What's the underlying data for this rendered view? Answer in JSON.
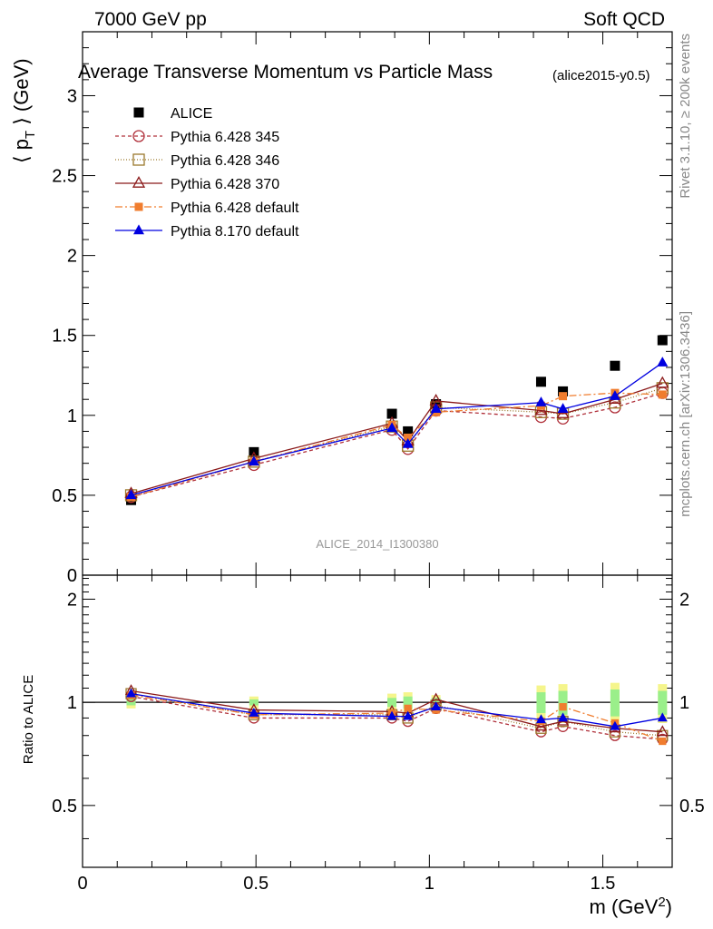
{
  "header": {
    "left": "7000 GeV pp",
    "right": "Soft QCD",
    "title": "Average Transverse Momentum vs Particle Mass",
    "subtitle": "(alice2015-y0.5)",
    "watermark": "ALICE_2014_I1300380",
    "side_rivet": "Rivet 3.1.10, ≥ 200k events",
    "side_mcplots": "mcplots.cern.ch [arXiv:1306.3436]"
  },
  "axes": {
    "ylabel": "⟨ p_T ⟩ (GeV)",
    "ratio_ylabel": "Ratio to ALICE",
    "xlabel": "m (GeV²)"
  },
  "legend": [
    {
      "label": "ALICE",
      "color": "#000000",
      "marker": "square-filled",
      "dash": "none"
    },
    {
      "label": "Pythia 6.428 345",
      "color": "#b0303a",
      "marker": "circle-open",
      "dash": "4,3"
    },
    {
      "label": "Pythia 6.428 346",
      "color": "#9c7a2e",
      "marker": "square-open",
      "dash": "1,2"
    },
    {
      "label": "Pythia 6.428 370",
      "color": "#8b1a1a",
      "marker": "triangle-open",
      "dash": "solid"
    },
    {
      "label": "Pythia 6.428 default",
      "color": "#f07d2e",
      "marker": "square-filled-small",
      "dash": "8,3,2,3"
    },
    {
      "label": "Pythia 8.170 default",
      "color": "#0000e0",
      "marker": "triangle-filled",
      "dash": "solid"
    }
  ],
  "chart_data": [
    {
      "type": "scatter",
      "panel": "main",
      "x": [
        0.14,
        0.494,
        0.892,
        0.938,
        1.019,
        1.322,
        1.385,
        1.535,
        1.672
      ],
      "x_tick_labels": [
        "0",
        "0.5",
        "1",
        "1.5"
      ],
      "xlim": [
        0,
        1.7
      ],
      "ylim": [
        0,
        3.4
      ],
      "y_ticks": [
        0,
        0.5,
        1,
        1.5,
        2,
        2.5,
        3
      ],
      "y_tick_labels": [
        "0",
        "0.5",
        "1",
        "1.5",
        "2",
        "2.5",
        "3"
      ],
      "series": [
        {
          "name": "ALICE",
          "values": [
            0.47,
            0.77,
            1.01,
            0.9,
            1.07,
            1.21,
            1.15,
            1.31,
            1.47
          ]
        },
        {
          "name": "Pythia 6.428 345",
          "values": [
            0.49,
            0.69,
            0.91,
            0.79,
            1.03,
            0.99,
            0.98,
            1.05,
            1.14
          ]
        },
        {
          "name": "Pythia 6.428 346",
          "values": [
            0.5,
            0.71,
            0.93,
            0.81,
            1.05,
            1.02,
            1.01,
            1.08,
            1.17
          ]
        },
        {
          "name": "Pythia 6.428 370",
          "values": [
            0.51,
            0.73,
            0.95,
            0.84,
            1.09,
            1.03,
            1.01,
            1.1,
            1.2
          ]
        },
        {
          "name": "Pythia 6.428 default",
          "values": [
            0.49,
            0.71,
            0.94,
            0.86,
            1.02,
            1.06,
            1.12,
            1.14,
            1.13
          ]
        },
        {
          "name": "Pythia 8.170 default",
          "values": [
            0.5,
            0.71,
            0.92,
            0.82,
            1.04,
            1.08,
            1.04,
            1.12,
            1.33
          ]
        }
      ]
    },
    {
      "type": "scatter",
      "panel": "ratio",
      "x": [
        0.14,
        0.494,
        0.892,
        0.938,
        1.019,
        1.322,
        1.385,
        1.535,
        1.672
      ],
      "xlim": [
        0,
        1.7
      ],
      "ylim": [
        0.33,
        2.35
      ],
      "y_scale": "log",
      "y_tick_labels": [
        "0.5",
        "1",
        "2"
      ],
      "y_ticks": [
        0.5,
        1,
        2
      ],
      "band_yellow": [
        [
          0.96,
          1.04
        ],
        [
          0.96,
          1.04
        ],
        [
          0.94,
          1.06
        ],
        [
          0.93,
          1.07
        ],
        [
          0.95,
          1.05
        ],
        [
          0.88,
          1.12
        ],
        [
          0.87,
          1.13
        ],
        [
          0.86,
          1.14
        ],
        [
          0.87,
          1.13
        ]
      ],
      "band_green": [
        [
          0.98,
          1.02
        ],
        [
          0.98,
          1.02
        ],
        [
          0.97,
          1.03
        ],
        [
          0.96,
          1.04
        ],
        [
          0.97,
          1.03
        ],
        [
          0.93,
          1.07
        ],
        [
          0.92,
          1.08
        ],
        [
          0.91,
          1.09
        ],
        [
          0.92,
          1.08
        ]
      ],
      "series": [
        {
          "name": "Pythia 6.428 345",
          "values": [
            1.04,
            0.9,
            0.9,
            0.88,
            0.96,
            0.82,
            0.85,
            0.8,
            0.78
          ]
        },
        {
          "name": "Pythia 6.428 346",
          "values": [
            1.06,
            0.92,
            0.92,
            0.9,
            0.98,
            0.84,
            0.88,
            0.82,
            0.8
          ]
        },
        {
          "name": "Pythia 6.428 370",
          "values": [
            1.08,
            0.95,
            0.94,
            0.93,
            1.02,
            0.85,
            0.88,
            0.84,
            0.82
          ]
        },
        {
          "name": "Pythia 6.428 default",
          "values": [
            1.05,
            0.92,
            0.93,
            0.96,
            0.95,
            0.88,
            0.97,
            0.87,
            0.77
          ]
        },
        {
          "name": "Pythia 8.170 default",
          "values": [
            1.06,
            0.93,
            0.91,
            0.91,
            0.97,
            0.89,
            0.9,
            0.85,
            0.9
          ]
        }
      ]
    }
  ]
}
